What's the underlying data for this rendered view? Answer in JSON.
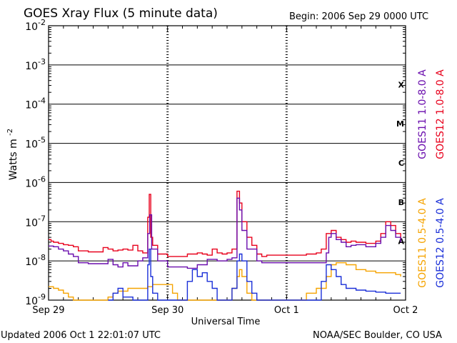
{
  "header": {
    "title": "GOES Xray Flux (5 minute data)",
    "begin": "Begin:  2006 Sep 29 0000 UTC"
  },
  "footer": {
    "updated": "Updated 2006 Oct  1 22:01:07 UTC",
    "credit": "NOAA/SEC Boulder, CO USA"
  },
  "chart_data": {
    "type": "line",
    "title": "GOES Xray Flux (5 minute data)",
    "xlabel": "Universal Time",
    "ylabel": "Watts m",
    "ylabel_exponent": "-2",
    "ylog": true,
    "ylim": [
      1e-09,
      0.01
    ],
    "xlim": [
      0,
      72
    ],
    "x_unit": "hours since 2006 Sep 29 0000 UTC",
    "x_ticks": [
      {
        "x": 0,
        "label": "Sep 29"
      },
      {
        "x": 24,
        "label": "Sep 30"
      },
      {
        "x": 48,
        "label": "Oct 1"
      },
      {
        "x": 72,
        "label": "Oct 2"
      }
    ],
    "y_ticks": [
      {
        "exp": -2,
        "base": "10",
        "sup": "-2"
      },
      {
        "exp": -3,
        "base": "10",
        "sup": "-3"
      },
      {
        "exp": -4,
        "base": "10",
        "sup": "-4"
      },
      {
        "exp": -5,
        "base": "10",
        "sup": "-5"
      },
      {
        "exp": -6,
        "base": "10",
        "sup": "-6"
      },
      {
        "exp": -7,
        "base": "10",
        "sup": "-7"
      },
      {
        "exp": -8,
        "base": "10",
        "sup": "-8"
      },
      {
        "exp": -9,
        "base": "10",
        "sup": "-9"
      }
    ],
    "flare_classes": [
      {
        "label": "X",
        "exp": -3.5
      },
      {
        "label": "M",
        "exp": -4.5
      },
      {
        "label": "C",
        "exp": -5.5
      },
      {
        "label": "B",
        "exp": -6.5
      },
      {
        "label": "A",
        "exp": -7.5
      }
    ],
    "grid": true,
    "legend_right": [
      {
        "name": "GOES11 1.0-8.0 A",
        "color": "#6a0dad",
        "position": "top"
      },
      {
        "name": "GOES12 1.0-8.0 A",
        "color": "#e8001c",
        "position": "top"
      },
      {
        "name": "GOES11 0.5-4.0 A",
        "color": "#f5a300",
        "position": "bottom"
      },
      {
        "name": "GOES12 0.5-4.0 A",
        "color": "#1a2fd8",
        "position": "bottom"
      }
    ],
    "series": [
      {
        "name": "GOES12 1.0-8.0 A",
        "color": "#e8001c",
        "points": [
          [
            0,
            3.5e-08
          ],
          [
            0.5,
            3.2e-08
          ],
          [
            1,
            3e-08
          ],
          [
            2,
            2.8e-08
          ],
          [
            3,
            2.6e-08
          ],
          [
            4,
            2.5e-08
          ],
          [
            5,
            2.3e-08
          ],
          [
            6,
            1.8e-08
          ],
          [
            8,
            1.7e-08
          ],
          [
            10,
            1.7e-08
          ],
          [
            11,
            2.2e-08
          ],
          [
            12,
            2e-08
          ],
          [
            13,
            1.8e-08
          ],
          [
            14,
            1.9e-08
          ],
          [
            15,
            2e-08
          ],
          [
            16,
            1.9e-08
          ],
          [
            17,
            2.5e-08
          ],
          [
            18,
            1.8e-08
          ],
          [
            19,
            1.6e-08
          ],
          [
            20,
            1.3e-07
          ],
          [
            20.3,
            5e-07
          ],
          [
            20.6,
            4e-08
          ],
          [
            21,
            2.5e-08
          ],
          [
            22,
            1.5e-08
          ],
          [
            24,
            1.3e-08
          ],
          [
            26,
            1.3e-08
          ],
          [
            28,
            1.5e-08
          ],
          [
            30,
            1.6e-08
          ],
          [
            31,
            1.5e-08
          ],
          [
            32,
            1.4e-08
          ],
          [
            33,
            2e-08
          ],
          [
            34,
            1.6e-08
          ],
          [
            35,
            1.5e-08
          ],
          [
            36,
            1.6e-08
          ],
          [
            37,
            2e-08
          ],
          [
            38,
            6e-07
          ],
          [
            38.5,
            3e-07
          ],
          [
            39,
            1e-07
          ],
          [
            40,
            4e-08
          ],
          [
            41,
            2.5e-08
          ],
          [
            42,
            1.5e-08
          ],
          [
            43,
            1.3e-08
          ],
          [
            44,
            1.4e-08
          ],
          [
            46,
            1.4e-08
          ],
          [
            48,
            1.4e-08
          ],
          [
            50,
            1.4e-08
          ],
          [
            52,
            1.5e-08
          ],
          [
            54,
            1.6e-08
          ],
          [
            55,
            2e-08
          ],
          [
            56,
            5e-08
          ],
          [
            57,
            6e-08
          ],
          [
            58,
            4e-08
          ],
          [
            59,
            3.5e-08
          ],
          [
            60,
            3e-08
          ],
          [
            61,
            3.2e-08
          ],
          [
            62,
            3e-08
          ],
          [
            64,
            2.8e-08
          ],
          [
            66,
            3.2e-08
          ],
          [
            67,
            5e-08
          ],
          [
            68,
            1e-07
          ],
          [
            69,
            8e-08
          ],
          [
            70,
            5e-08
          ],
          [
            71,
            3.5e-08
          ]
        ]
      },
      {
        "name": "GOES11 1.0-8.0 A",
        "color": "#6a0dad",
        "points": [
          [
            0,
            2.4e-08
          ],
          [
            1,
            2.3e-08
          ],
          [
            2,
            2e-08
          ],
          [
            3,
            1.8e-08
          ],
          [
            4,
            1.5e-08
          ],
          [
            5,
            1.3e-08
          ],
          [
            6,
            9e-09
          ],
          [
            8,
            8.5e-09
          ],
          [
            10,
            8.5e-09
          ],
          [
            12,
            1.1e-08
          ],
          [
            13,
            8e-09
          ],
          [
            14,
            7e-09
          ],
          [
            15,
            9e-09
          ],
          [
            16,
            7.5e-09
          ],
          [
            18,
            1e-08
          ],
          [
            19,
            1.2e-08
          ],
          [
            20,
            5e-08
          ],
          [
            20.4,
            1.5e-07
          ],
          [
            20.8,
            2e-08
          ],
          [
            22,
            1e-08
          ],
          [
            24,
            7e-09
          ],
          [
            26,
            7e-09
          ],
          [
            28,
            6.5e-09
          ],
          [
            30,
            8e-09
          ],
          [
            32,
            1.1e-08
          ],
          [
            34,
            1e-08
          ],
          [
            36,
            1.1e-08
          ],
          [
            37,
            1.2e-08
          ],
          [
            38,
            4e-07
          ],
          [
            38.5,
            2e-07
          ],
          [
            39,
            6e-08
          ],
          [
            40,
            2e-08
          ],
          [
            42,
            1e-08
          ],
          [
            43,
            9e-09
          ],
          [
            56,
            1.6e-08
          ],
          [
            56.5,
            4e-08
          ],
          [
            57,
            5e-08
          ],
          [
            58,
            3.5e-08
          ],
          [
            59,
            3e-08
          ],
          [
            60,
            2.3e-08
          ],
          [
            61,
            2.5e-08
          ],
          [
            62,
            2.6e-08
          ],
          [
            64,
            2.3e-08
          ],
          [
            66,
            2.8e-08
          ],
          [
            67,
            4e-08
          ],
          [
            68,
            8e-08
          ],
          [
            69,
            6e-08
          ],
          [
            70,
            4e-08
          ],
          [
            71,
            3e-08
          ]
        ]
      },
      {
        "name": "GOES11 0.5-4.0 A",
        "color": "#f5a300",
        "points": [
          [
            0,
            2.2e-09
          ],
          [
            1,
            2e-09
          ],
          [
            2,
            1.8e-09
          ],
          [
            3,
            1.5e-09
          ],
          [
            4,
            1.2e-09
          ],
          [
            5,
            1e-09
          ],
          [
            8,
            1e-09
          ],
          [
            12,
            1.2e-09
          ],
          [
            13,
            1.5e-09
          ],
          [
            14,
            1.7e-09
          ],
          [
            16,
            2e-09
          ],
          [
            18,
            2e-09
          ],
          [
            20,
            2.2e-09
          ],
          [
            21,
            2.5e-09
          ],
          [
            23,
            2.5e-09
          ],
          [
            24,
            2.5e-09
          ],
          [
            25,
            1.5e-09
          ],
          [
            26,
            1e-09
          ],
          [
            36,
            1e-09
          ],
          [
            37,
            2e-09
          ],
          [
            38,
            4e-09
          ],
          [
            38.5,
            6e-09
          ],
          [
            39,
            4e-09
          ],
          [
            40,
            1.5e-09
          ],
          [
            41,
            1e-09
          ],
          [
            48,
            1e-09
          ],
          [
            52,
            1.5e-09
          ],
          [
            54,
            2e-09
          ],
          [
            56,
            4e-09
          ],
          [
            57,
            8e-09
          ],
          [
            58,
            9e-09
          ],
          [
            60,
            8e-09
          ],
          [
            62,
            6e-09
          ],
          [
            64,
            5.5e-09
          ],
          [
            66,
            5e-09
          ],
          [
            68,
            5e-09
          ],
          [
            70,
            4.5e-09
          ],
          [
            71,
            4e-09
          ]
        ]
      },
      {
        "name": "GOES12 0.5-4.0 A",
        "color": "#1a2fd8",
        "points": [
          [
            12,
            1e-09
          ],
          [
            13,
            1.5e-09
          ],
          [
            14,
            2e-09
          ],
          [
            15,
            1.2e-09
          ],
          [
            17,
            1e-09
          ],
          [
            20,
            8e-09
          ],
          [
            20.3,
            2e-08
          ],
          [
            20.6,
            4e-09
          ],
          [
            21,
            1.5e-09
          ],
          [
            22,
            1e-09
          ],
          [
            28,
            3e-09
          ],
          [
            29,
            6e-09
          ],
          [
            30,
            4e-09
          ],
          [
            31,
            5e-09
          ],
          [
            32,
            3e-09
          ],
          [
            33,
            2e-09
          ],
          [
            34,
            1e-09
          ],
          [
            36,
            1e-09
          ],
          [
            37,
            2e-09
          ],
          [
            38,
            1e-08
          ],
          [
            38.5,
            1.5e-08
          ],
          [
            39,
            1e-08
          ],
          [
            40,
            3e-09
          ],
          [
            41,
            1.5e-09
          ],
          [
            42,
            1e-09
          ],
          [
            54,
            1e-09
          ],
          [
            55,
            3e-09
          ],
          [
            56,
            8e-09
          ],
          [
            57,
            6e-09
          ],
          [
            58,
            4e-09
          ],
          [
            59,
            2.5e-09
          ],
          [
            60,
            2e-09
          ],
          [
            62,
            1.8e-09
          ],
          [
            64,
            1.7e-09
          ],
          [
            66,
            1.6e-09
          ],
          [
            68,
            1.5e-09
          ],
          [
            70,
            1.5e-09
          ],
          [
            71,
            1.5e-09
          ]
        ]
      }
    ]
  }
}
